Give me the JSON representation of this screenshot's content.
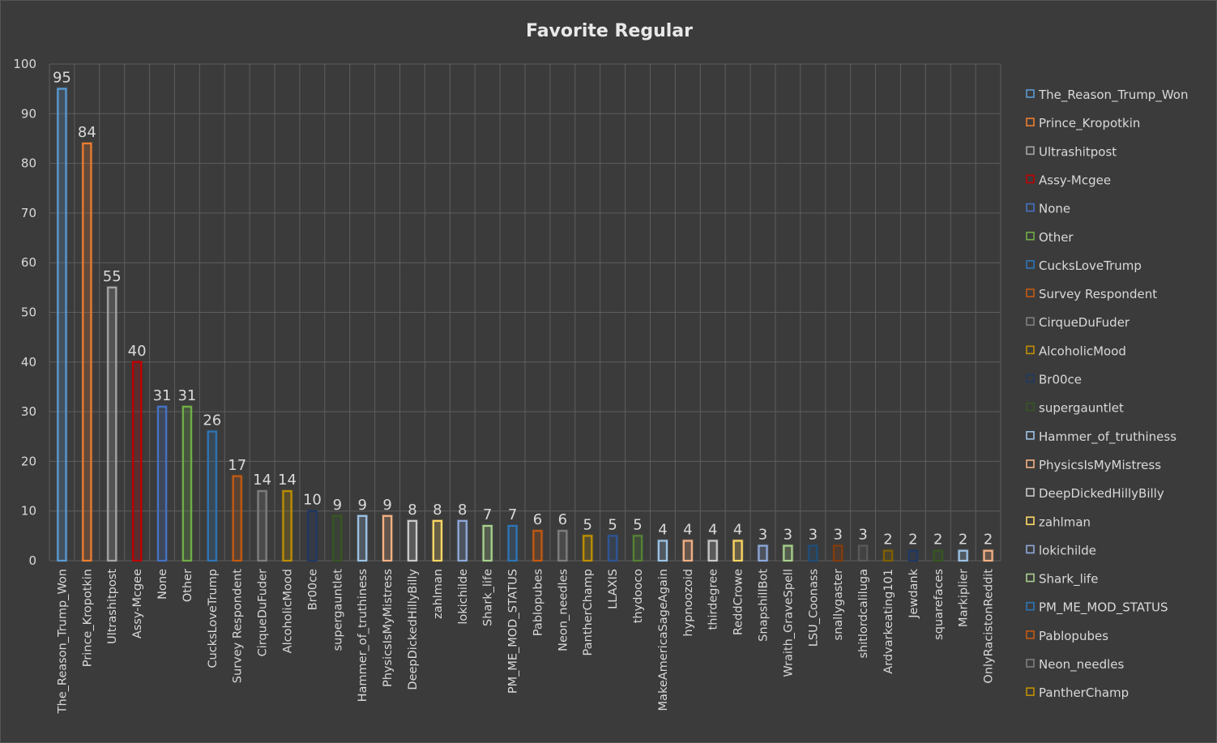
{
  "chart_data": {
    "type": "bar",
    "title": "Favorite Regular",
    "xlabel": "",
    "ylabel": "",
    "ylim": [
      0,
      100
    ],
    "y_ticks": [
      0,
      10,
      20,
      30,
      40,
      50,
      60,
      70,
      80,
      90,
      100
    ],
    "grid": true,
    "legend_position": "right",
    "background": "#3b3b3b",
    "categories": [
      "The_Reason_Trump_Won",
      "Prince_Kropotkin",
      "Ultrashitpost",
      "Assy-Mcgee",
      "None",
      "Other",
      "CucksLoveTrump",
      "Survey Respondent",
      "CirqueDuFuder",
      "AlcoholicMood",
      "Br00ce",
      "supergauntlet",
      "Hammer_of_truthiness",
      "PhysicsIsMyMistress",
      "DeepDickedHillyBilly",
      "zahlman",
      "lokichilde",
      "Shark_life",
      "PM_ME_MOD_STATUS",
      "Pablopubes",
      "Neon_needles",
      "PantherChamp",
      "LLAXIS",
      "thydooco",
      "MakeAmericaSageAgain",
      "hypnoozoid",
      "thirdegree",
      "ReddCrowe",
      "SnapshillBot",
      "Wraith_GraveSpell",
      "LSU_Coonass",
      "snallygaster",
      "shitlordcaliluga",
      "Ardvarkeating101",
      "Jewdank",
      "squarefaces",
      "Markiplier",
      "OnlyRacistonReddit"
    ],
    "values": [
      95,
      84,
      55,
      40,
      31,
      31,
      26,
      17,
      14,
      14,
      10,
      9,
      9,
      9,
      8,
      8,
      8,
      7,
      7,
      6,
      6,
      5,
      5,
      5,
      4,
      4,
      4,
      4,
      3,
      3,
      3,
      3,
      3,
      2,
      2,
      2,
      2,
      2
    ],
    "colors": [
      "#5b9bd5",
      "#ed7d31",
      "#a5a5a5",
      "#c00000",
      "#4472c4",
      "#70ad47",
      "#2e75b6",
      "#c55a11",
      "#7f7f7f",
      "#bf9000",
      "#203864",
      "#375623",
      "#9dc3e6",
      "#f4b183",
      "#c9c9c9",
      "#ffd966",
      "#8faadc",
      "#a9d18e",
      "#2e75b6",
      "#c55a11",
      "#7f7f7f",
      "#bf9000",
      "#2f5597",
      "#548235",
      "#9dc3e6",
      "#f4b183",
      "#c9c9c9",
      "#ffd966",
      "#8faadc",
      "#a9d18e",
      "#1f4e79",
      "#843c0c",
      "#595959",
      "#7f6000",
      "#203864",
      "#375623",
      "#9dc3e6",
      "#f4b183"
    ],
    "legend": [
      "The_Reason_Trump_Won",
      "Prince_Kropotkin",
      "Ultrashitpost",
      "Assy-Mcgee",
      "None",
      "Other",
      "CucksLoveTrump",
      "Survey Respondent",
      "CirqueDuFuder",
      "AlcoholicMood",
      "Br00ce",
      "supergauntlet",
      "Hammer_of_truthiness",
      "PhysicsIsMyMistress",
      "DeepDickedHillyBilly",
      "zahlman",
      "lokichilde",
      "Shark_life",
      "PM_ME_MOD_STATUS",
      "Pablopubes",
      "Neon_needles",
      "PantherChamp"
    ]
  }
}
